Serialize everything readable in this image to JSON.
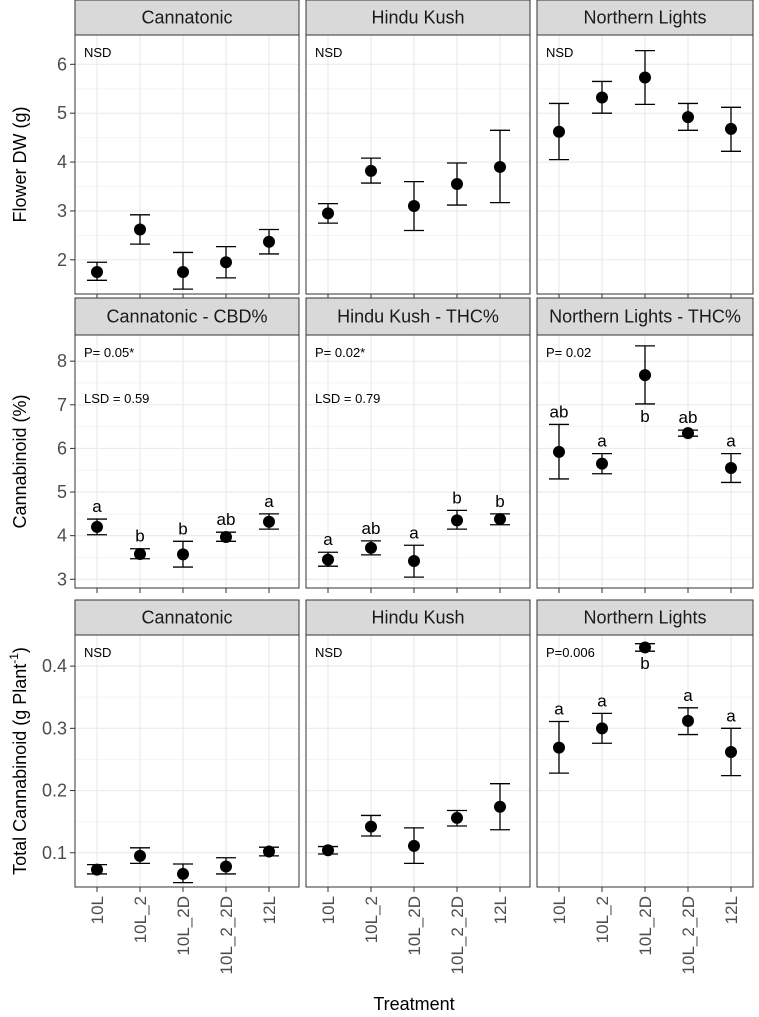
{
  "chart_data": {
    "type": "scatter",
    "title": "",
    "xlabel": "Treatment",
    "categories": [
      "10L",
      "10L_2",
      "10L_2D",
      "10L_2_2D",
      "12L"
    ],
    "rows": [
      {
        "ylabel": "Flower DW (g)",
        "ylim": [
          1.3,
          6.6
        ],
        "yticks": [
          2,
          3,
          4,
          5,
          6
        ],
        "tick_labels": [
          "2",
          "3",
          "4",
          "5",
          "6"
        ],
        "panels": [
          {
            "strip": "Cannatonic",
            "annotations": [
              "NSD"
            ],
            "means": [
              1.75,
              2.62,
              1.75,
              1.95,
              2.37
            ],
            "lower": [
              1.58,
              2.32,
              1.4,
              1.63,
              2.12
            ],
            "upper": [
              1.95,
              2.92,
              2.15,
              2.27,
              2.62
            ],
            "letters": []
          },
          {
            "strip": "Hindu Kush",
            "annotations": [
              "NSD"
            ],
            "means": [
              2.95,
              3.82,
              3.1,
              3.55,
              3.9
            ],
            "lower": [
              2.75,
              3.57,
              2.6,
              3.12,
              3.17
            ],
            "upper": [
              3.15,
              4.08,
              3.6,
              3.98,
              4.65
            ],
            "letters": []
          },
          {
            "strip": "Northern Lights",
            "annotations": [
              "NSD"
            ],
            "means": [
              4.62,
              5.32,
              5.73,
              4.92,
              4.68
            ],
            "lower": [
              4.05,
              5.0,
              5.18,
              4.65,
              4.22
            ],
            "upper": [
              5.2,
              5.65,
              6.28,
              5.2,
              5.12
            ],
            "letters": []
          }
        ]
      },
      {
        "ylabel": "Cannabinoid (%)",
        "ylim": [
          2.8,
          8.6
        ],
        "yticks": [
          3,
          4,
          5,
          6,
          7,
          8
        ],
        "tick_labels": [
          "3",
          "4",
          "5",
          "6",
          "7",
          "8"
        ],
        "panels": [
          {
            "strip": "Cannatonic - CBD%",
            "annotations": [
              "P= 0.05*",
              "LSD = 0.59"
            ],
            "means": [
              4.2,
              3.58,
              3.57,
              3.97,
              4.32
            ],
            "lower": [
              4.02,
              3.47,
              3.28,
              3.87,
              4.15
            ],
            "upper": [
              4.38,
              3.7,
              3.87,
              4.08,
              4.5
            ],
            "letters": [
              "a",
              "b",
              "b",
              "ab",
              "a"
            ]
          },
          {
            "strip": "Hindu Kush - THC%",
            "annotations": [
              "P= 0.02*",
              "LSD = 0.79"
            ],
            "means": [
              3.45,
              3.72,
              3.42,
              4.35,
              4.38
            ],
            "lower": [
              3.3,
              3.56,
              3.05,
              4.15,
              4.25
            ],
            "upper": [
              3.62,
              3.88,
              3.78,
              4.58,
              4.5
            ],
            "letters": [
              "a",
              "ab",
              "a",
              "b",
              "b"
            ]
          },
          {
            "strip": "Northern Lights - THC%",
            "annotations": [
              "P= 0.02"
            ],
            "means": [
              5.92,
              5.65,
              7.68,
              6.35,
              5.55
            ],
            "lower": [
              5.3,
              5.42,
              7.02,
              6.28,
              5.22
            ],
            "upper": [
              6.55,
              5.88,
              8.35,
              6.42,
              5.88
            ],
            "letters": [
              "ab",
              "a",
              "b",
              "ab",
              "a"
            ],
            "letter_below": [
              false,
              false,
              true,
              false,
              false
            ]
          }
        ]
      },
      {
        "ylabel": "Total Cannabinoid (g Plant",
        "ylabel_sup": "-1",
        "ylabel_close": ")",
        "ylim": [
          0.045,
          0.45
        ],
        "yticks": [
          0.1,
          0.2,
          0.3,
          0.4
        ],
        "tick_labels": [
          "0.1",
          "0.2",
          "0.3",
          "0.4"
        ],
        "panels": [
          {
            "strip": "Cannatonic",
            "annotations": [
              "NSD"
            ],
            "means": [
              0.073,
              0.095,
              0.066,
              0.078,
              0.102
            ],
            "lower": [
              0.066,
              0.083,
              0.052,
              0.066,
              0.095
            ],
            "upper": [
              0.081,
              0.108,
              0.082,
              0.092,
              0.109
            ],
            "letters": []
          },
          {
            "strip": "Hindu Kush",
            "annotations": [
              "NSD"
            ],
            "means": [
              0.104,
              0.142,
              0.111,
              0.156,
              0.174
            ],
            "lower": [
              0.098,
              0.127,
              0.083,
              0.143,
              0.137
            ],
            "upper": [
              0.11,
              0.16,
              0.14,
              0.168,
              0.211
            ],
            "letters": []
          },
          {
            "strip": "Northern Lights",
            "annotations": [
              "P=0.006"
            ],
            "means": [
              0.269,
              0.3,
              0.43,
              0.312,
              0.262
            ],
            "lower": [
              0.228,
              0.276,
              0.424,
              0.29,
              0.224
            ],
            "upper": [
              0.311,
              0.324,
              0.436,
              0.333,
              0.3
            ],
            "letters": [
              "a",
              "a",
              "b",
              "a",
              "a"
            ],
            "letter_below": [
              false,
              false,
              true,
              false,
              false
            ]
          }
        ]
      }
    ]
  }
}
